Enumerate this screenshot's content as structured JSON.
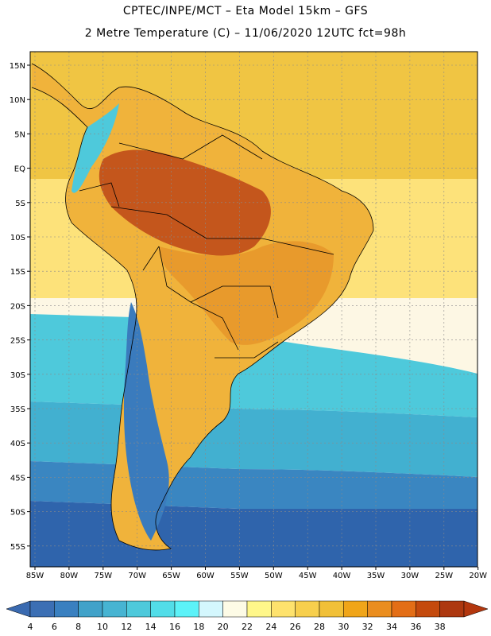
{
  "title_line1": "CPTEC/INPE/MCT –  Eta Model 15km – GFS",
  "title_line2": "2 Metre Temperature (C) – 11/06/2020 12UTC fct=98h",
  "lat_labels": [
    "15N",
    "10N",
    "5N",
    "EQ",
    "5S",
    "10S",
    "15S",
    "20S",
    "25S",
    "30S",
    "35S",
    "40S",
    "45S",
    "50S",
    "55S"
  ],
  "lon_labels": [
    "85W",
    "80W",
    "75W",
    "70W",
    "65W",
    "60W",
    "55W",
    "50W",
    "45W",
    "40W",
    "35W",
    "30W",
    "25W",
    "20W"
  ],
  "colorbar": {
    "labels": [
      "4",
      "6",
      "8",
      "10",
      "12",
      "14",
      "16",
      "18",
      "20",
      "22",
      "24",
      "26",
      "28",
      "30",
      "32",
      "34",
      "36",
      "38"
    ],
    "colors": [
      "#3c6fb4",
      "#3a80c0",
      "#41a2c9",
      "#47b4d2",
      "#4ec9db",
      "#52dde8",
      "#5cf2f8",
      "#d4f7fd",
      "#fdfbe6",
      "#fff78a",
      "#fee26d",
      "#f7cf4d",
      "#f1c038",
      "#f0a519",
      "#ea8d1f",
      "#e36e16",
      "#c44a0d",
      "#ad3810"
    ],
    "low_color": "#3a6ab0",
    "high_color": "#b3370e"
  },
  "map_colors": {
    "ocean_north": "#f0c543",
    "ocean_north_mid": "#fde27a",
    "ocean_mid": "#fdf7e4",
    "ocean_cyan": "#4ec9db",
    "ocean_teal": "#42b0d0",
    "ocean_blue": "#3a86c1",
    "ocean_deep": "#2f64ac",
    "land_hot": "#c4561c",
    "land_warm": "#e89a2c",
    "land_orange": "#f0b33b",
    "andes": "#3a7bbd"
  }
}
